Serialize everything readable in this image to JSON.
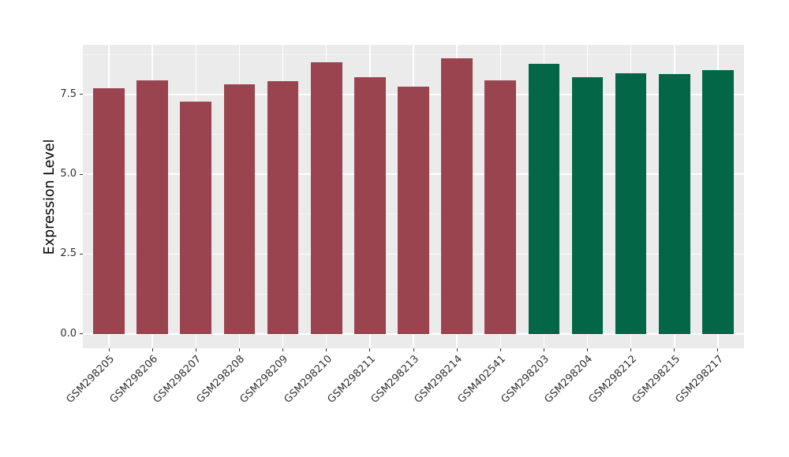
{
  "chart_data": {
    "type": "bar",
    "title": "",
    "xlabel": "",
    "ylabel": "Expression Level",
    "categories": [
      "GSM298205",
      "GSM298206",
      "GSM298207",
      "GSM298208",
      "GSM298209",
      "GSM298210",
      "GSM298211",
      "GSM298213",
      "GSM298214",
      "GSM402541",
      "GSM298203",
      "GSM298204",
      "GSM298212",
      "GSM298215",
      "GSM298217"
    ],
    "values": [
      7.7,
      7.93,
      7.27,
      7.81,
      7.92,
      8.51,
      8.04,
      7.74,
      8.62,
      7.94,
      8.46,
      8.05,
      8.17,
      8.13,
      8.26
    ],
    "bar_colors": [
      "#9A4450",
      "#9A4450",
      "#9A4450",
      "#9A4450",
      "#9A4450",
      "#9A4450",
      "#9A4450",
      "#9A4450",
      "#9A4450",
      "#9A4450",
      "#026647",
      "#026647",
      "#026647",
      "#026647",
      "#026647"
    ],
    "group_colors": {
      "maroon-group": "#9A4450",
      "green-group": "#026647"
    },
    "yticks": [
      0.0,
      2.5,
      5.0,
      7.5
    ],
    "ytick_labels": [
      "0.0",
      "2.5",
      "5.0",
      "7.5"
    ],
    "yticks_minor": [
      1.25,
      3.75,
      6.25,
      8.75
    ],
    "ylim": [
      -0.45,
      9.05
    ],
    "grid": true,
    "legend": "none",
    "colors": {
      "background": "#FFFFFF",
      "panel_background": "#EBEBEB",
      "grid_major": "#FFFFFF",
      "grid_minor": "#F5F5F5",
      "tick_mark": "#333333",
      "tick_label": "#303030",
      "axis_title": "#000000"
    }
  }
}
